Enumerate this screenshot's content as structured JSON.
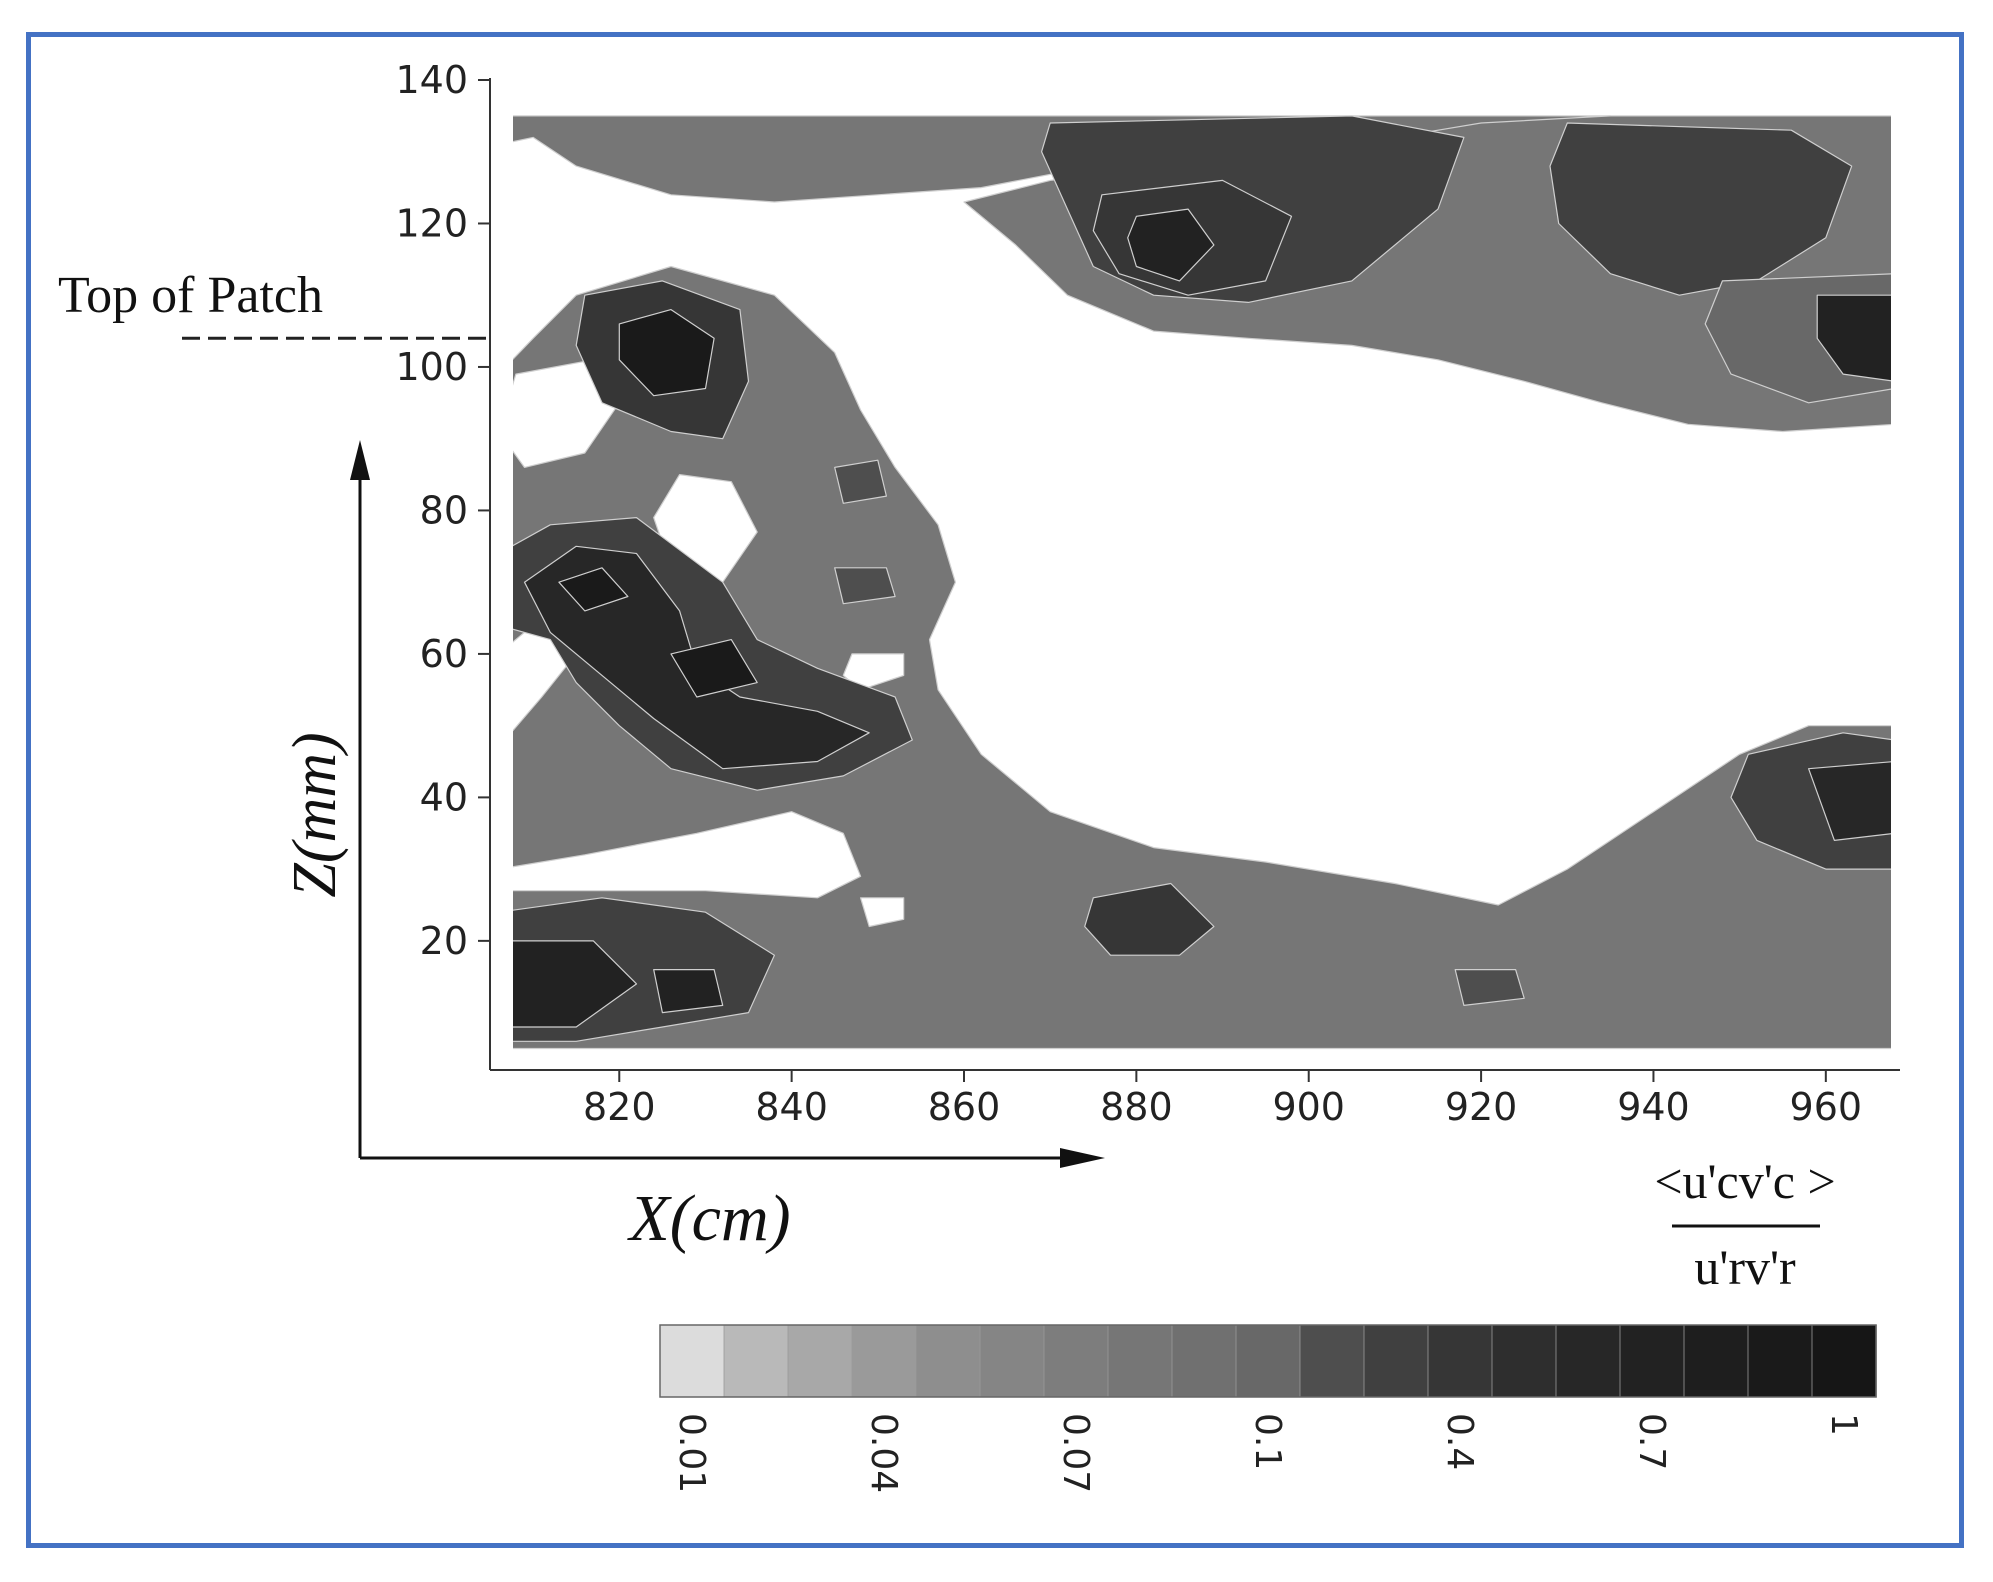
{
  "chart_data": {
    "type": "heatmap",
    "title": "",
    "xlabel": "X(cm)",
    "ylabel": "Z(mm)",
    "xlim": [
      805,
      970
    ],
    "ylim": [
      2,
      140
    ],
    "x_ticks": [
      820,
      840,
      860,
      880,
      900,
      920,
      940,
      960
    ],
    "y_ticks": [
      20,
      40,
      60,
      80,
      100,
      120,
      140
    ],
    "annotation": "Top of Patch",
    "annotation_z": 104,
    "colorbar": {
      "label_numerator": "<u'cv'c >",
      "label_denominator": "u'rv'r",
      "tick_labels": [
        "0.01",
        "0.04",
        "0.07",
        "0.1",
        "0.4",
        "0.7",
        "1"
      ],
      "levels": 19,
      "colors": [
        "#dcdcdc",
        "#b9b9b9",
        "#a8a8a8",
        "#9a9a9a",
        "#8e8e8e",
        "#858585",
        "#7d7d7d",
        "#767676",
        "#707070",
        "#686868",
        "#4e4e4e",
        "#404040",
        "#363636",
        "#2e2e2e",
        "#272727",
        "#222222",
        "#1e1e1e",
        "#1a1a1a",
        "#161616"
      ]
    },
    "regions": [
      {
        "level": 7,
        "points": [
          [
            806,
            135
          ],
          [
            935,
            135
          ],
          [
            928,
            128
          ],
          [
            900,
            130
          ],
          [
            875,
            128
          ],
          [
            862,
            125
          ],
          [
            850,
            124
          ],
          [
            838,
            123
          ],
          [
            826,
            124
          ],
          [
            815,
            128
          ],
          [
            810,
            132
          ],
          [
            806,
            131
          ]
        ]
      },
      {
        "level": 7,
        "points": [
          [
            935,
            135
          ],
          [
            968,
            135
          ],
          [
            968,
            92
          ],
          [
            955,
            91
          ],
          [
            944,
            92
          ],
          [
            934,
            95
          ],
          [
            925,
            98
          ],
          [
            915,
            101
          ],
          [
            905,
            103
          ],
          [
            893,
            104
          ],
          [
            882,
            105
          ],
          [
            872,
            110
          ],
          [
            866,
            117
          ],
          [
            860,
            123
          ],
          [
            870,
            126
          ],
          [
            885,
            128
          ],
          [
            905,
            131
          ],
          [
            920,
            134
          ]
        ]
      },
      {
        "level": 11,
        "points": [
          [
            870,
            134
          ],
          [
            905,
            135
          ],
          [
            918,
            132
          ],
          [
            915,
            122
          ],
          [
            905,
            112
          ],
          [
            893,
            109
          ],
          [
            882,
            110
          ],
          [
            875,
            114
          ],
          [
            872,
            122
          ],
          [
            869,
            130
          ]
        ]
      },
      {
        "level": 12,
        "points": [
          [
            876,
            124
          ],
          [
            890,
            126
          ],
          [
            898,
            121
          ],
          [
            895,
            112
          ],
          [
            886,
            110
          ],
          [
            878,
            113
          ],
          [
            875,
            119
          ]
        ]
      },
      {
        "level": 15,
        "points": [
          [
            880,
            121
          ],
          [
            886,
            122
          ],
          [
            889,
            117
          ],
          [
            885,
            112
          ],
          [
            880,
            114
          ],
          [
            879,
            118
          ]
        ]
      },
      {
        "level": 11,
        "points": [
          [
            930,
            134
          ],
          [
            956,
            133
          ],
          [
            963,
            128
          ],
          [
            960,
            118
          ],
          [
            952,
            112
          ],
          [
            943,
            110
          ],
          [
            935,
            113
          ],
          [
            929,
            120
          ],
          [
            928,
            128
          ]
        ]
      },
      {
        "level": 9,
        "points": [
          [
            948,
            112
          ],
          [
            968,
            113
          ],
          [
            968,
            97
          ],
          [
            958,
            95
          ],
          [
            949,
            99
          ],
          [
            946,
            106
          ]
        ]
      },
      {
        "level": 15,
        "points": [
          [
            959,
            110
          ],
          [
            968,
            110
          ],
          [
            968,
            98
          ],
          [
            962,
            99
          ],
          [
            959,
            104
          ]
        ]
      },
      {
        "level": 7,
        "points": [
          [
            815,
            110
          ],
          [
            826,
            114
          ],
          [
            838,
            110
          ],
          [
            845,
            102
          ],
          [
            848,
            94
          ],
          [
            852,
            86
          ],
          [
            857,
            78
          ],
          [
            859,
            70
          ],
          [
            856,
            62
          ],
          [
            857,
            55
          ],
          [
            862,
            46
          ],
          [
            870,
            38
          ],
          [
            882,
            33
          ],
          [
            895,
            31
          ],
          [
            910,
            28
          ],
          [
            922,
            25
          ],
          [
            930,
            30
          ],
          [
            940,
            38
          ],
          [
            950,
            46
          ],
          [
            958,
            50
          ],
          [
            968,
            50
          ],
          [
            968,
            5
          ],
          [
            806,
            5
          ],
          [
            806,
            99
          ],
          [
            810,
            104
          ]
        ]
      },
      {
        "level": 0,
        "points": [
          [
            808,
            99
          ],
          [
            817,
            101
          ],
          [
            820,
            95
          ],
          [
            816,
            88
          ],
          [
            809,
            86
          ],
          [
            806,
            91
          ]
        ]
      },
      {
        "level": 0,
        "points": [
          [
            827,
            85
          ],
          [
            833,
            84
          ],
          [
            836,
            77
          ],
          [
            832,
            70
          ],
          [
            826,
            72
          ],
          [
            824,
            79
          ]
        ]
      },
      {
        "level": 0,
        "points": [
          [
            847,
            60
          ],
          [
            853,
            60
          ],
          [
            853,
            57
          ],
          [
            848,
            55
          ],
          [
            846,
            57
          ]
        ]
      },
      {
        "level": 0,
        "points": [
          [
            806,
            47
          ],
          [
            811,
            54
          ],
          [
            815,
            60
          ],
          [
            810,
            64
          ],
          [
            806,
            60
          ]
        ]
      },
      {
        "level": 0,
        "points": [
          [
            806,
            30
          ],
          [
            816,
            32
          ],
          [
            829,
            35
          ],
          [
            840,
            38
          ],
          [
            846,
            35
          ],
          [
            848,
            29
          ],
          [
            843,
            26
          ],
          [
            830,
            27
          ],
          [
            818,
            27
          ],
          [
            806,
            27
          ]
        ]
      },
      {
        "level": 0,
        "points": [
          [
            848,
            26
          ],
          [
            853,
            26
          ],
          [
            853,
            23
          ],
          [
            849,
            22
          ]
        ]
      },
      {
        "level": 12,
        "points": [
          [
            816,
            110
          ],
          [
            825,
            112
          ],
          [
            834,
            108
          ],
          [
            835,
            98
          ],
          [
            832,
            90
          ],
          [
            826,
            91
          ],
          [
            818,
            95
          ],
          [
            815,
            103
          ]
        ]
      },
      {
        "level": 17,
        "points": [
          [
            820,
            106
          ],
          [
            826,
            108
          ],
          [
            831,
            104
          ],
          [
            830,
            97
          ],
          [
            824,
            96
          ],
          [
            820,
            101
          ]
        ]
      },
      {
        "level": 11,
        "points": [
          [
            806,
            74
          ],
          [
            812,
            78
          ],
          [
            822,
            79
          ],
          [
            832,
            70
          ],
          [
            836,
            62
          ],
          [
            843,
            58
          ],
          [
            852,
            54
          ],
          [
            854,
            48
          ],
          [
            846,
            43
          ],
          [
            836,
            41
          ],
          [
            826,
            44
          ],
          [
            820,
            50
          ],
          [
            815,
            56
          ],
          [
            812,
            62
          ],
          [
            806,
            64
          ]
        ]
      },
      {
        "level": 14,
        "points": [
          [
            809,
            70
          ],
          [
            815,
            75
          ],
          [
            822,
            74
          ],
          [
            827,
            66
          ],
          [
            829,
            58
          ],
          [
            834,
            54
          ],
          [
            843,
            52
          ],
          [
            849,
            49
          ],
          [
            843,
            45
          ],
          [
            832,
            44
          ],
          [
            824,
            51
          ],
          [
            818,
            57
          ],
          [
            812,
            63
          ]
        ]
      },
      {
        "level": 17,
        "points": [
          [
            813,
            70
          ],
          [
            818,
            72
          ],
          [
            821,
            68
          ],
          [
            816,
            66
          ]
        ]
      },
      {
        "level": 17,
        "points": [
          [
            826,
            60
          ],
          [
            833,
            62
          ],
          [
            836,
            56
          ],
          [
            829,
            54
          ]
        ]
      },
      {
        "level": 10,
        "points": [
          [
            845,
            86
          ],
          [
            850,
            87
          ],
          [
            851,
            82
          ],
          [
            846,
            81
          ]
        ]
      },
      {
        "level": 10,
        "points": [
          [
            845,
            72
          ],
          [
            851,
            72
          ],
          [
            852,
            68
          ],
          [
            846,
            67
          ]
        ]
      },
      {
        "level": 11,
        "points": [
          [
            806,
            24
          ],
          [
            818,
            26
          ],
          [
            830,
            24
          ],
          [
            838,
            18
          ],
          [
            835,
            10
          ],
          [
            825,
            8
          ],
          [
            815,
            6
          ],
          [
            806,
            6
          ]
        ]
      },
      {
        "level": 15,
        "points": [
          [
            806,
            20
          ],
          [
            817,
            20
          ],
          [
            822,
            14
          ],
          [
            815,
            8
          ],
          [
            806,
            8
          ]
        ]
      },
      {
        "level": 15,
        "points": [
          [
            824,
            16
          ],
          [
            831,
            16
          ],
          [
            832,
            11
          ],
          [
            825,
            10
          ]
        ]
      },
      {
        "level": 12,
        "points": [
          [
            875,
            26
          ],
          [
            884,
            28
          ],
          [
            889,
            22
          ],
          [
            885,
            18
          ],
          [
            877,
            18
          ],
          [
            874,
            22
          ]
        ]
      },
      {
        "level": 10,
        "points": [
          [
            917,
            16
          ],
          [
            924,
            16
          ],
          [
            925,
            12
          ],
          [
            918,
            11
          ]
        ]
      },
      {
        "level": 11,
        "points": [
          [
            951,
            46
          ],
          [
            962,
            49
          ],
          [
            968,
            48
          ],
          [
            968,
            30
          ],
          [
            960,
            30
          ],
          [
            952,
            34
          ],
          [
            949,
            40
          ]
        ]
      },
      {
        "level": 14,
        "points": [
          [
            958,
            44
          ],
          [
            968,
            45
          ],
          [
            968,
            35
          ],
          [
            961,
            34
          ]
        ]
      }
    ]
  }
}
